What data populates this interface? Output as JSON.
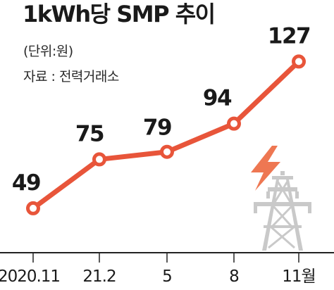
{
  "title": "1kWh당 SMP 추이",
  "unit": "(단위:원)",
  "source": "자료 : 전력거래소",
  "colors": {
    "line": "#e8553a",
    "marker_fill": "#ffffff",
    "bolt": "#ee7752",
    "tower": "#c9c9c9",
    "axis": "#222222"
  },
  "icons": [
    "lightning-bolt-icon",
    "power-tower-icon"
  ],
  "chart_data": {
    "type": "line",
    "categories": [
      "2020.11",
      "21.2",
      "5",
      "8",
      "11월"
    ],
    "values": [
      49,
      75,
      79,
      94,
      127
    ],
    "data_labels": [
      "49",
      "75",
      "79",
      "94",
      "127"
    ],
    "title": "1kWh당 SMP 추이",
    "xlabel": "",
    "ylabel": "",
    "unit": "(단위:원)",
    "ylim": [
      40,
      135
    ],
    "grid": false,
    "legend": "none"
  }
}
